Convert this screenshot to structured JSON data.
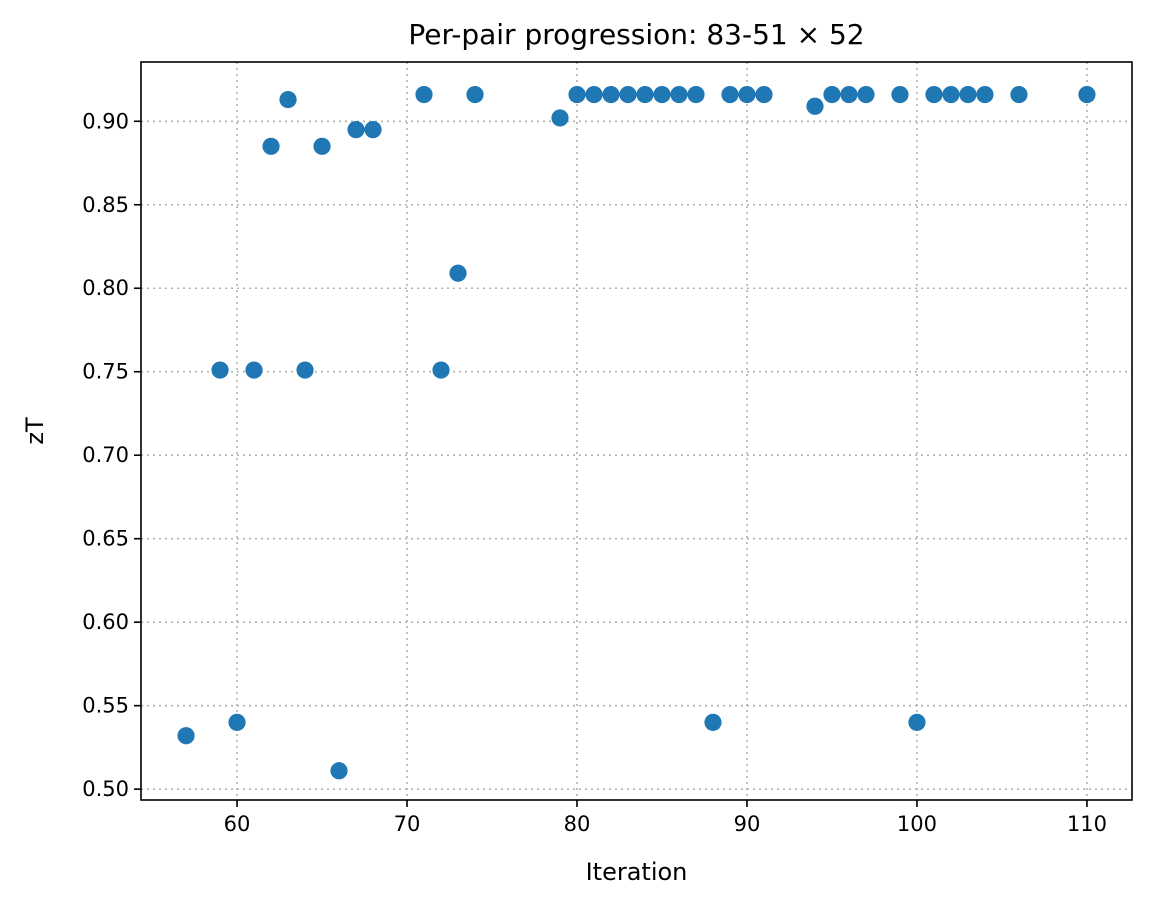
{
  "chart_data": {
    "type": "scatter",
    "title": "Per-pair progression: 83-51 × 52",
    "xlabel": "Iteration",
    "ylabel": "zT",
    "xlim": [
      54.35,
      112.65
    ],
    "ylim": [
      0.4935,
      0.9355
    ],
    "xticks": [
      60,
      70,
      80,
      90,
      100,
      110
    ],
    "xtick_labels": [
      "60",
      "70",
      "80",
      "90",
      "100",
      "110"
    ],
    "yticks": [
      0.5,
      0.55,
      0.6,
      0.65,
      0.7,
      0.75,
      0.8,
      0.85,
      0.9
    ],
    "ytick_labels": [
      "0.50",
      "0.55",
      "0.60",
      "0.65",
      "0.70",
      "0.75",
      "0.80",
      "0.85",
      "0.90"
    ],
    "grid": true,
    "color": "#1f77b4",
    "points": [
      {
        "x": 57,
        "y": 0.532
      },
      {
        "x": 59,
        "y": 0.751
      },
      {
        "x": 60,
        "y": 0.54
      },
      {
        "x": 61,
        "y": 0.751
      },
      {
        "x": 62,
        "y": 0.885
      },
      {
        "x": 63,
        "y": 0.913
      },
      {
        "x": 64,
        "y": 0.751
      },
      {
        "x": 65,
        "y": 0.885
      },
      {
        "x": 66,
        "y": 0.511
      },
      {
        "x": 67,
        "y": 0.895
      },
      {
        "x": 68,
        "y": 0.895
      },
      {
        "x": 71,
        "y": 0.916
      },
      {
        "x": 72,
        "y": 0.751
      },
      {
        "x": 73,
        "y": 0.809
      },
      {
        "x": 74,
        "y": 0.916
      },
      {
        "x": 79,
        "y": 0.902
      },
      {
        "x": 80,
        "y": 0.916
      },
      {
        "x": 81,
        "y": 0.916
      },
      {
        "x": 82,
        "y": 0.916
      },
      {
        "x": 83,
        "y": 0.916
      },
      {
        "x": 84,
        "y": 0.916
      },
      {
        "x": 85,
        "y": 0.916
      },
      {
        "x": 86,
        "y": 0.916
      },
      {
        "x": 87,
        "y": 0.916
      },
      {
        "x": 88,
        "y": 0.54
      },
      {
        "x": 89,
        "y": 0.916
      },
      {
        "x": 90,
        "y": 0.916
      },
      {
        "x": 91,
        "y": 0.916
      },
      {
        "x": 94,
        "y": 0.909
      },
      {
        "x": 95,
        "y": 0.916
      },
      {
        "x": 96,
        "y": 0.916
      },
      {
        "x": 97,
        "y": 0.916
      },
      {
        "x": 99,
        "y": 0.916
      },
      {
        "x": 100,
        "y": 0.54
      },
      {
        "x": 101,
        "y": 0.916
      },
      {
        "x": 102,
        "y": 0.916
      },
      {
        "x": 103,
        "y": 0.916
      },
      {
        "x": 104,
        "y": 0.916
      },
      {
        "x": 106,
        "y": 0.916
      },
      {
        "x": 110,
        "y": 0.916
      }
    ]
  }
}
